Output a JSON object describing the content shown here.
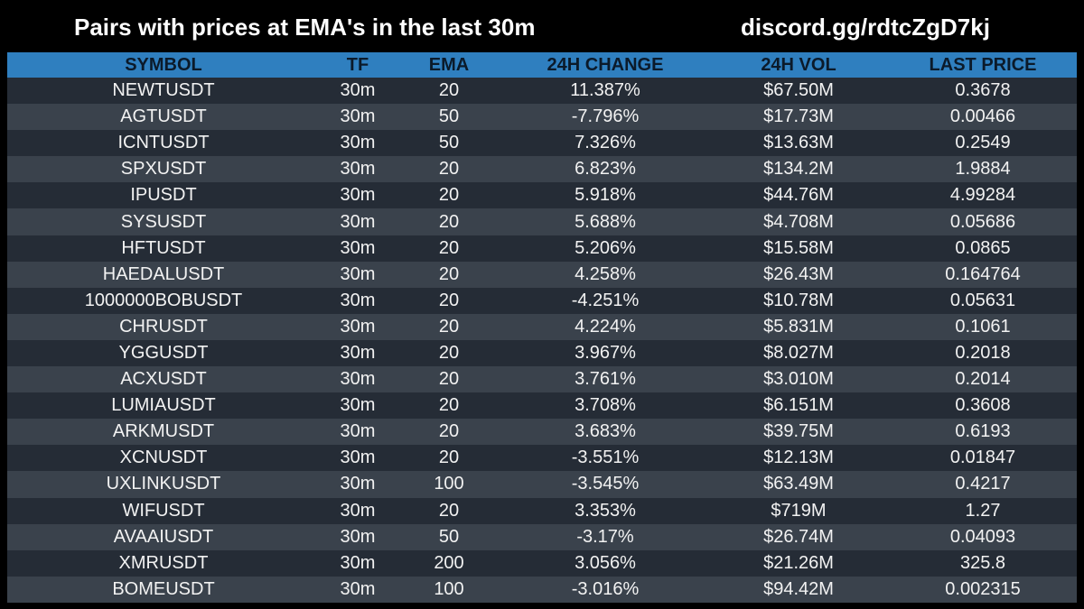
{
  "header": {
    "title": "Pairs with prices at EMA's in the last 30m",
    "discord": "discord.gg/rdtcZgD7kj"
  },
  "colors": {
    "background": "#000000",
    "header_row": "#2f7fbf",
    "row_dark": "#252c36",
    "row_light": "#3a424c",
    "text": "#ffffff"
  },
  "table": {
    "columns": [
      "SYMBOL",
      "TF",
      "EMA",
      "24H CHANGE",
      "24H VOL",
      "LAST PRICE"
    ],
    "rows": [
      [
        "NEWTUSDT",
        "30m",
        "20",
        "11.387%",
        "$67.50M",
        "0.3678"
      ],
      [
        "AGTUSDT",
        "30m",
        "50",
        "-7.796%",
        "$17.73M",
        "0.00466"
      ],
      [
        "ICNTUSDT",
        "30m",
        "50",
        "7.326%",
        "$13.63M",
        "0.2549"
      ],
      [
        "SPXUSDT",
        "30m",
        "20",
        "6.823%",
        "$134.2M",
        "1.9884"
      ],
      [
        "IPUSDT",
        "30m",
        "20",
        "5.918%",
        "$44.76M",
        "4.99284"
      ],
      [
        "SYSUSDT",
        "30m",
        "20",
        "5.688%",
        "$4.708M",
        "0.05686"
      ],
      [
        "HFTUSDT",
        "30m",
        "20",
        "5.206%",
        "$15.58M",
        "0.0865"
      ],
      [
        "HAEDALUSDT",
        "30m",
        "20",
        "4.258%",
        "$26.43M",
        "0.164764"
      ],
      [
        "1000000BOBUSDT",
        "30m",
        "20",
        "-4.251%",
        "$10.78M",
        "0.05631"
      ],
      [
        "CHRUSDT",
        "30m",
        "20",
        "4.224%",
        "$5.831M",
        "0.1061"
      ],
      [
        "YGGUSDT",
        "30m",
        "20",
        "3.967%",
        "$8.027M",
        "0.2018"
      ],
      [
        "ACXUSDT",
        "30m",
        "20",
        "3.761%",
        "$3.010M",
        "0.2014"
      ],
      [
        "LUMIAUSDT",
        "30m",
        "20",
        "3.708%",
        "$6.151M",
        "0.3608"
      ],
      [
        "ARKMUSDT",
        "30m",
        "20",
        "3.683%",
        "$39.75M",
        "0.6193"
      ],
      [
        "XCNUSDT",
        "30m",
        "20",
        "-3.551%",
        "$12.13M",
        "0.01847"
      ],
      [
        "UXLINKUSDT",
        "30m",
        "100",
        "-3.545%",
        "$63.49M",
        "0.4217"
      ],
      [
        "WIFUSDT",
        "30m",
        "20",
        "3.353%",
        "$719M",
        "1.27"
      ],
      [
        "AVAAIUSDT",
        "30m",
        "50",
        "-3.17%",
        "$26.74M",
        "0.04093"
      ],
      [
        "XMRUSDT",
        "30m",
        "200",
        "3.056%",
        "$21.26M",
        "325.8"
      ],
      [
        "BOMEUSDT",
        "30m",
        "100",
        "-3.016%",
        "$94.42M",
        "0.002315"
      ]
    ]
  }
}
